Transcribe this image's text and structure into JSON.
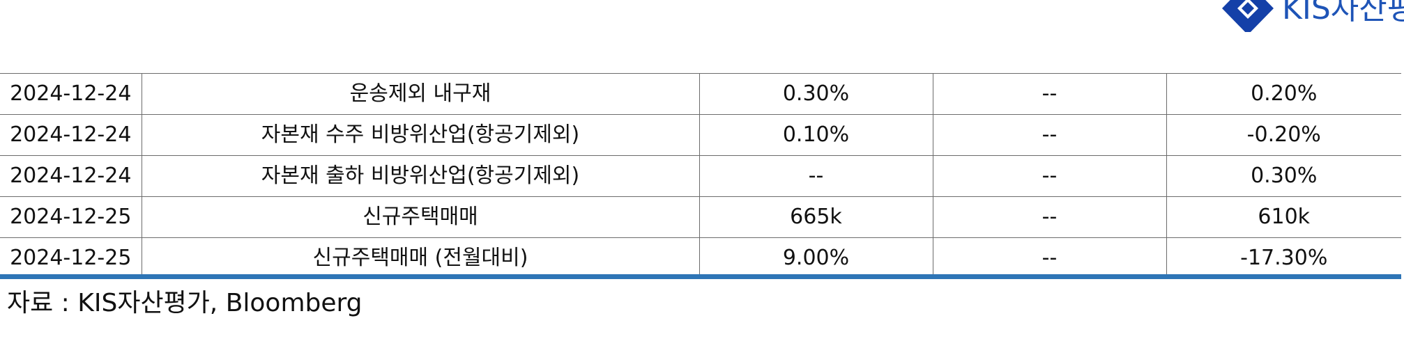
{
  "logo": {
    "text": "KIS자산평가",
    "mark_color": "#1440a8",
    "text_color": "#1e54b7"
  },
  "table": {
    "rows": [
      {
        "date": "2024-12-24",
        "indicator": "운송제외 내구재",
        "actual": "0.30%",
        "forecast": "--",
        "previous": "0.20%"
      },
      {
        "date": "2024-12-24",
        "indicator": "자본재 수주 비방위산업(항공기제외)",
        "actual": "0.10%",
        "forecast": "--",
        "previous": "-0.20%"
      },
      {
        "date": "2024-12-24",
        "indicator": "자본재 출하 비방위산업(항공기제외)",
        "actual": "--",
        "forecast": "--",
        "previous": "0.30%"
      },
      {
        "date": "2024-12-25",
        "indicator": "신규주택매매",
        "actual": "665k",
        "forecast": "--",
        "previous": "610k"
      },
      {
        "date": "2024-12-25",
        "indicator": "신규주택매매 (전월대비)",
        "actual": "9.00%",
        "forecast": "--",
        "previous": "-17.30%"
      }
    ],
    "rule_color": "#2e75b6"
  },
  "source": {
    "text": "자료 : KIS자산평가, Bloomberg"
  }
}
